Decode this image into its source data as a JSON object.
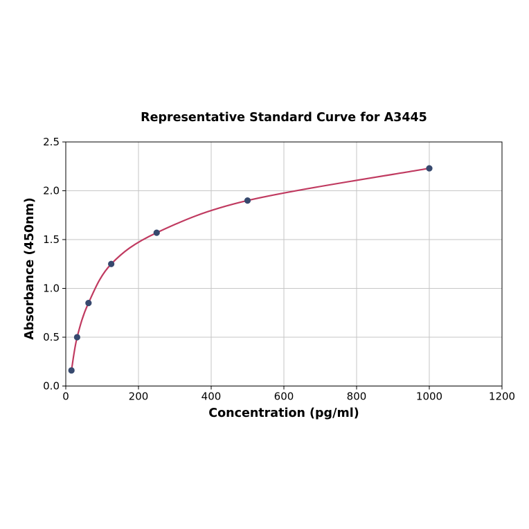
{
  "chart_data": {
    "type": "scatter",
    "title": "Representative Standard Curve for A3445",
    "xlabel": "Concentration (pg/ml)",
    "ylabel": "Absorbance (450nm)",
    "x": [
      15.6,
      31.2,
      62.5,
      125,
      250,
      500,
      1000
    ],
    "y": [
      0.16,
      0.5,
      0.85,
      1.25,
      1.57,
      1.9,
      2.23
    ],
    "curve_style": "smooth fitted curve through data points",
    "xlim": [
      0,
      1200
    ],
    "ylim": [
      0,
      2.5
    ],
    "xticks": [
      "0",
      "200",
      "400",
      "600",
      "800",
      "1000",
      "1200"
    ],
    "yticks": [
      "0.0",
      "0.5",
      "1.0",
      "1.5",
      "2.0",
      "2.5"
    ],
    "grid": true,
    "legend_position": "none",
    "colors": {
      "line": "#c03a60",
      "marker": "#37496e",
      "grid": "#c6c6c6",
      "axis": "#000000",
      "background": "#ffffff"
    }
  }
}
